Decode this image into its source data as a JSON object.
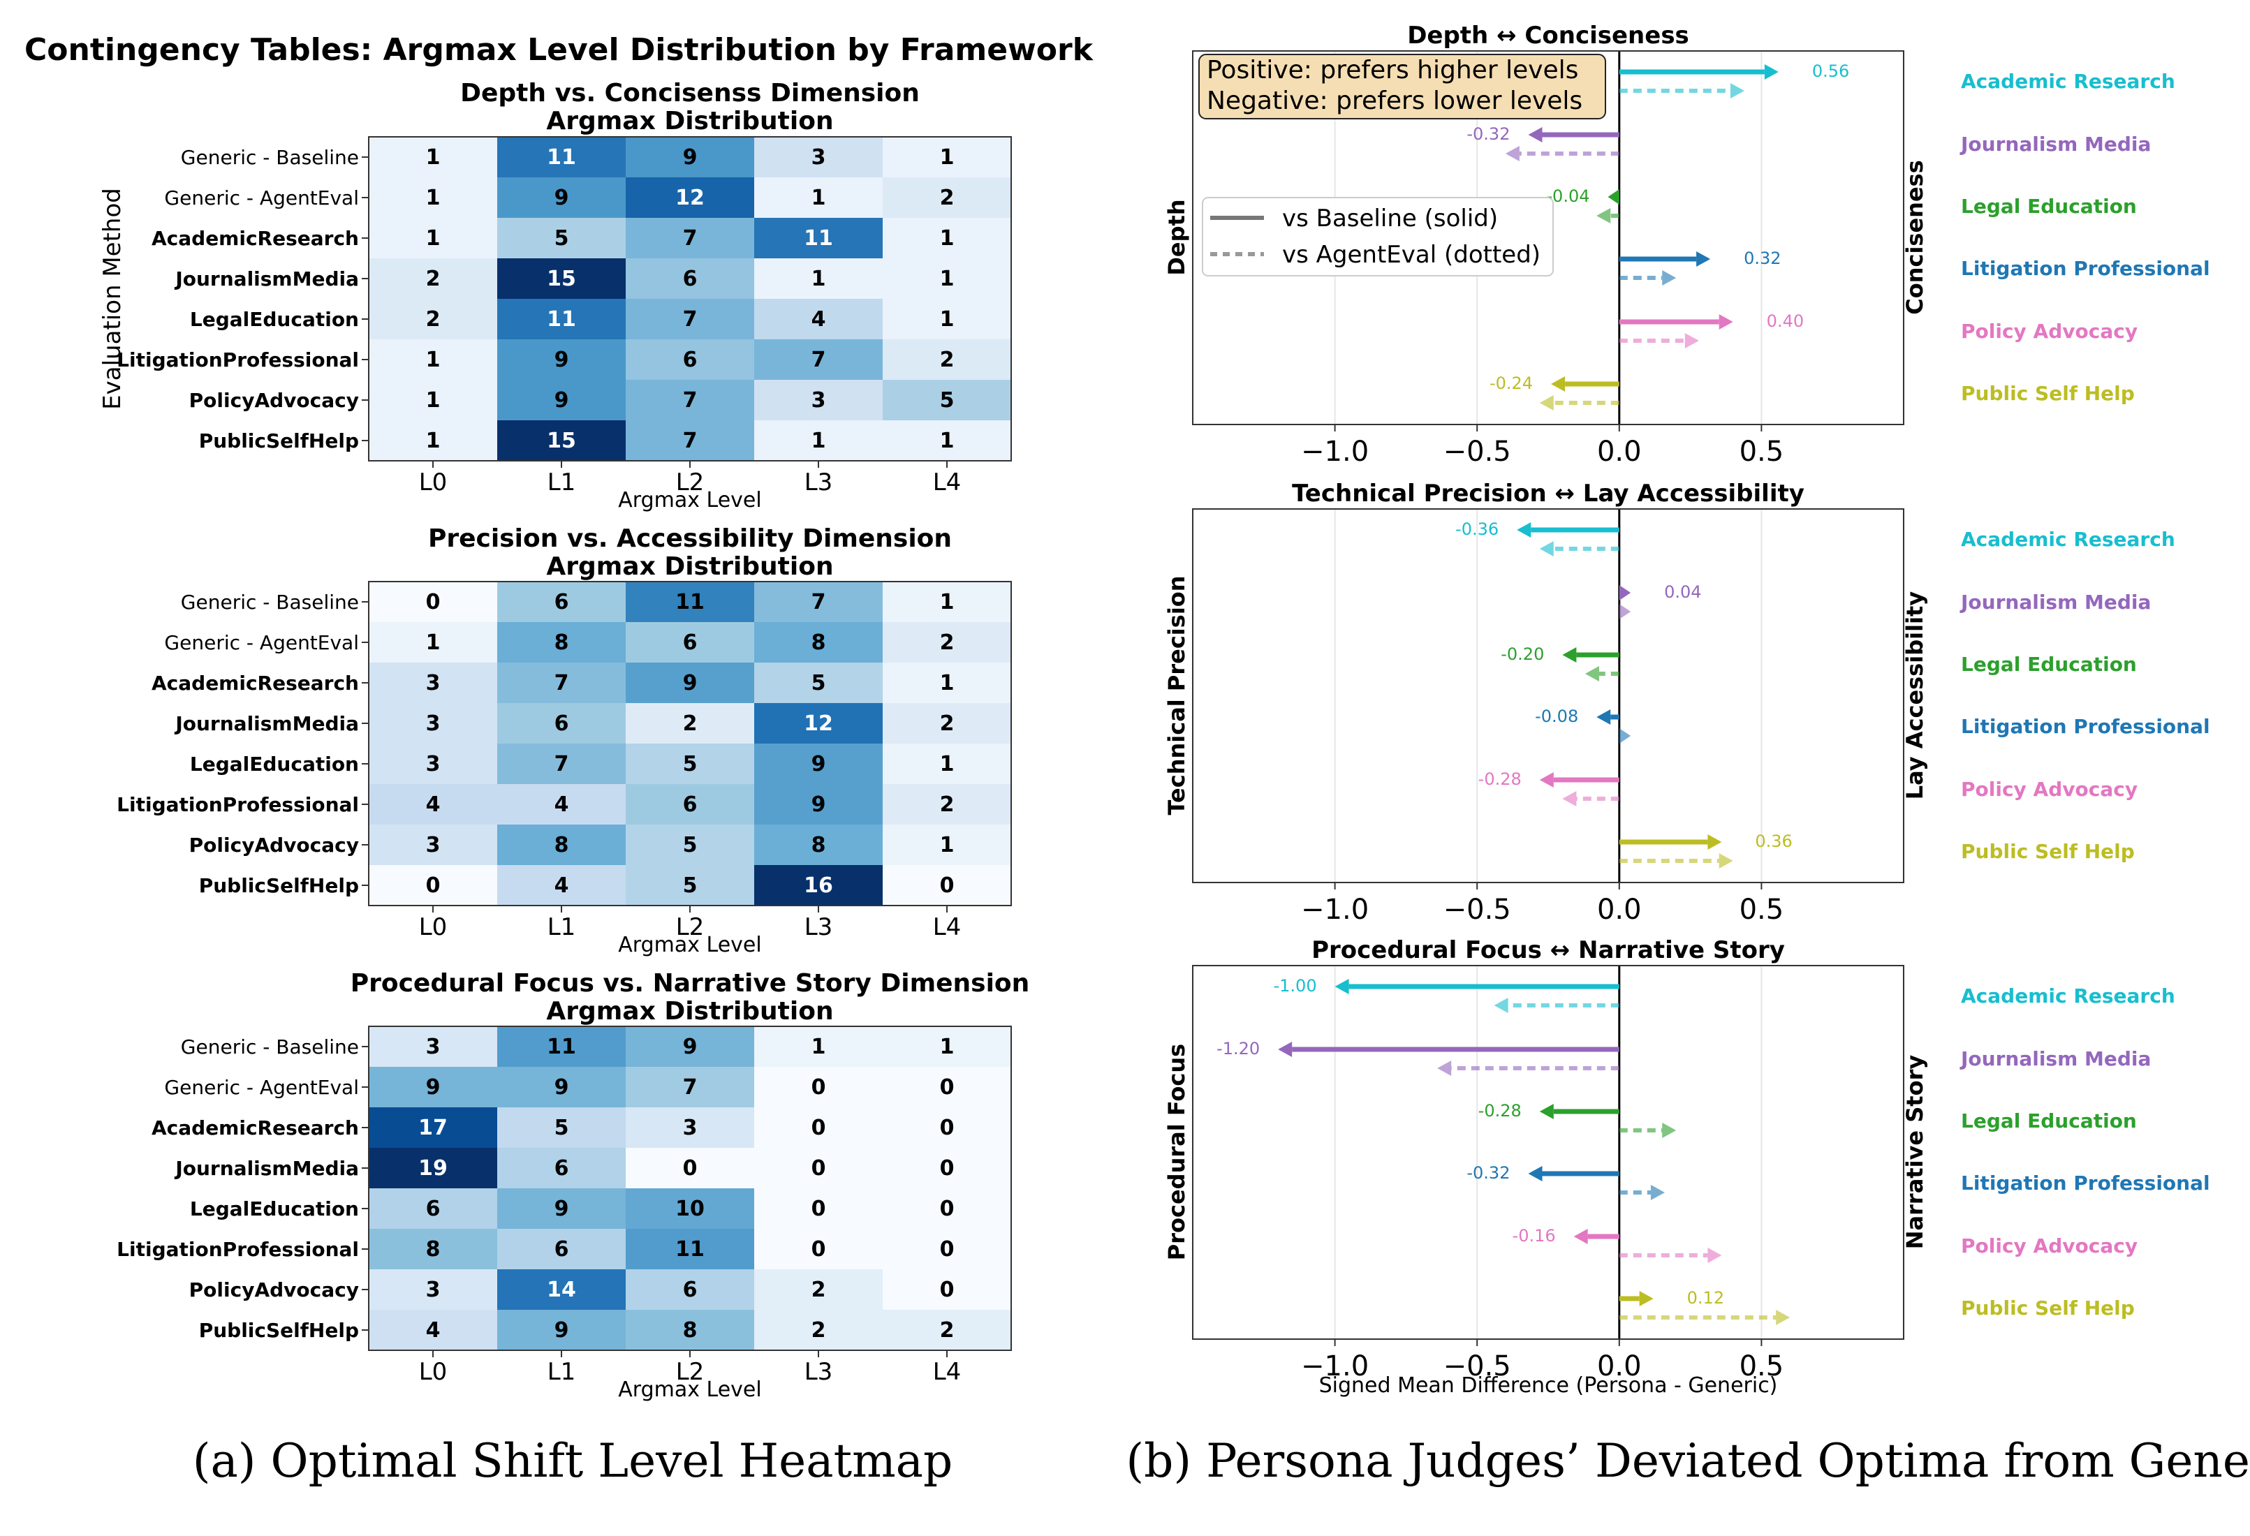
{
  "figure": {
    "suptitle": "Contingency Tables: Argmax Level Distribution by Framework",
    "caption_a": "(a) Optimal Shift Level Heatmap",
    "caption_b": "(b) Persona Judges’ Deviated Optima from Generic"
  },
  "colors": {
    "heat_low": "#f7fbff",
    "heat_high": "#08306b",
    "text_dark": "#000000",
    "text_light": "#ffffff",
    "persona": [
      "#17becf",
      "#9467bd",
      "#2ca02c",
      "#1f77b4",
      "#e377c2",
      "#bcbd22"
    ]
  },
  "chart_data": [
    {
      "type": "heatmap",
      "title": "Depth vs. Concisenss Dimension",
      "subtitle": "Argmax Distribution",
      "xlabel": "Argmax Level",
      "ylabel": "Evaluation Method",
      "x_categories": [
        "L0",
        "L1",
        "L2",
        "L3",
        "L4"
      ],
      "y_categories": [
        "Generic - Baseline",
        "Generic - AgentEval",
        "AcademicResearch",
        "JournalismMedia",
        "LegalEducation",
        "LitigationProfessional",
        "PolicyAdvocacy",
        "PublicSelfHelp"
      ],
      "bold_rows": [
        false,
        false,
        true,
        true,
        true,
        true,
        true,
        true
      ],
      "values": [
        [
          1,
          11,
          9,
          3,
          1
        ],
        [
          1,
          9,
          12,
          1,
          2
        ],
        [
          1,
          5,
          7,
          11,
          1
        ],
        [
          2,
          15,
          6,
          1,
          1
        ],
        [
          2,
          11,
          7,
          4,
          1
        ],
        [
          1,
          9,
          6,
          7,
          2
        ],
        [
          1,
          9,
          7,
          3,
          5
        ],
        [
          1,
          15,
          7,
          1,
          1
        ]
      ]
    },
    {
      "type": "heatmap",
      "title": "Precision vs. Accessibility Dimension",
      "subtitle": "Argmax Distribution",
      "xlabel": "Argmax Level",
      "ylabel": "",
      "x_categories": [
        "L0",
        "L1",
        "L2",
        "L3",
        "L4"
      ],
      "y_categories": [
        "Generic - Baseline",
        "Generic - AgentEval",
        "AcademicResearch",
        "JournalismMedia",
        "LegalEducation",
        "LitigationProfessional",
        "PolicyAdvocacy",
        "PublicSelfHelp"
      ],
      "bold_rows": [
        false,
        false,
        true,
        true,
        true,
        true,
        true,
        true
      ],
      "values": [
        [
          0,
          6,
          11,
          7,
          1
        ],
        [
          1,
          8,
          6,
          8,
          2
        ],
        [
          3,
          7,
          9,
          5,
          1
        ],
        [
          3,
          6,
          2,
          12,
          2
        ],
        [
          3,
          7,
          5,
          9,
          1
        ],
        [
          4,
          4,
          6,
          9,
          2
        ],
        [
          3,
          8,
          5,
          8,
          1
        ],
        [
          0,
          4,
          5,
          16,
          0
        ]
      ]
    },
    {
      "type": "heatmap",
      "title": "Procedural Focus vs. Narrative Story Dimension",
      "subtitle": "Argmax Distribution",
      "xlabel": "Argmax Level",
      "ylabel": "",
      "x_categories": [
        "L0",
        "L1",
        "L2",
        "L3",
        "L4"
      ],
      "y_categories": [
        "Generic - Baseline",
        "Generic - AgentEval",
        "AcademicResearch",
        "JournalismMedia",
        "LegalEducation",
        "LitigationProfessional",
        "PolicyAdvocacy",
        "PublicSelfHelp"
      ],
      "bold_rows": [
        false,
        false,
        true,
        true,
        true,
        true,
        true,
        true
      ],
      "values": [
        [
          3,
          11,
          9,
          1,
          1
        ],
        [
          9,
          9,
          7,
          0,
          0
        ],
        [
          17,
          5,
          3,
          0,
          0
        ],
        [
          19,
          6,
          0,
          0,
          0
        ],
        [
          6,
          9,
          10,
          0,
          0
        ],
        [
          8,
          6,
          11,
          0,
          0
        ],
        [
          3,
          14,
          6,
          2,
          0
        ],
        [
          4,
          9,
          8,
          2,
          2
        ]
      ]
    },
    {
      "type": "bar",
      "orientation": "horizontal",
      "title": "Depth ↔ Conciseness",
      "left_label": "Depth",
      "right_label": "Conciseness",
      "xlim": [
        -1.5,
        1.0
      ],
      "xticks": [
        -1.0,
        -0.5,
        0.0,
        0.5
      ],
      "xtick_labels": [
        "−1.0",
        "−0.5",
        "0.0",
        "0.5"
      ],
      "xlabel": "",
      "categories": [
        "Academic Research",
        "Journalism Media",
        "Legal Education",
        "Litigation Professional",
        "Policy Advocacy",
        "Public Self Help"
      ],
      "series": [
        {
          "name": "vs Baseline (solid)",
          "values": [
            0.56,
            -0.32,
            -0.04,
            0.32,
            0.4,
            -0.24
          ],
          "labels": [
            "0.56",
            "-0.32",
            "-0.04",
            "0.32",
            "0.40",
            "-0.24"
          ]
        },
        {
          "name": "vs AgentEval (dotted)",
          "values": [
            0.44,
            -0.4,
            -0.08,
            0.2,
            0.28,
            -0.28
          ]
        }
      ],
      "annotation": [
        "Positive: prefers higher levels",
        "Negative: prefers lower levels"
      ],
      "legend": [
        "vs Baseline (solid)",
        "vs AgentEval (dotted)"
      ]
    },
    {
      "type": "bar",
      "orientation": "horizontal",
      "title": "Technical Precision ↔ Lay Accessibility",
      "left_label": "Technical Precision",
      "right_label": "Lay Accessibility",
      "xlim": [
        -1.5,
        1.0
      ],
      "xticks": [
        -1.0,
        -0.5,
        0.0,
        0.5
      ],
      "xtick_labels": [
        "−1.0",
        "−0.5",
        "0.0",
        "0.5"
      ],
      "xlabel": "",
      "categories": [
        "Academic Research",
        "Journalism Media",
        "Legal Education",
        "Litigation Professional",
        "Policy Advocacy",
        "Public Self Help"
      ],
      "series": [
        {
          "name": "vs Baseline (solid)",
          "values": [
            -0.36,
            0.04,
            -0.2,
            -0.08,
            -0.28,
            0.36
          ],
          "labels": [
            "-0.36",
            "0.04",
            "-0.20",
            "-0.08",
            "-0.28",
            "0.36"
          ]
        },
        {
          "name": "vs AgentEval (dotted)",
          "values": [
            -0.28,
            0.04,
            -0.12,
            0.04,
            -0.2,
            0.4
          ]
        }
      ]
    },
    {
      "type": "bar",
      "orientation": "horizontal",
      "title": "Procedural Focus ↔ Narrative Story",
      "left_label": "Procedural Focus",
      "right_label": "Narrative Story",
      "xlim": [
        -1.5,
        1.0
      ],
      "xticks": [
        -1.0,
        -0.5,
        0.0,
        0.5
      ],
      "xtick_labels": [
        "−1.0",
        "−0.5",
        "0.0",
        "0.5"
      ],
      "xlabel": "Signed Mean Difference (Persona - Generic)",
      "categories": [
        "Academic Research",
        "Journalism Media",
        "Legal Education",
        "Litigation Professional",
        "Policy Advocacy",
        "Public Self Help"
      ],
      "series": [
        {
          "name": "vs Baseline (solid)",
          "values": [
            -1.0,
            -1.2,
            -0.28,
            -0.32,
            -0.16,
            0.12
          ],
          "labels": [
            "-1.00",
            "-1.20",
            "-0.28",
            "-0.32",
            "-0.16",
            "0.12"
          ]
        },
        {
          "name": "vs AgentEval (dotted)",
          "values": [
            -0.44,
            -0.64,
            0.2,
            0.16,
            0.36,
            0.6
          ]
        }
      ]
    }
  ]
}
